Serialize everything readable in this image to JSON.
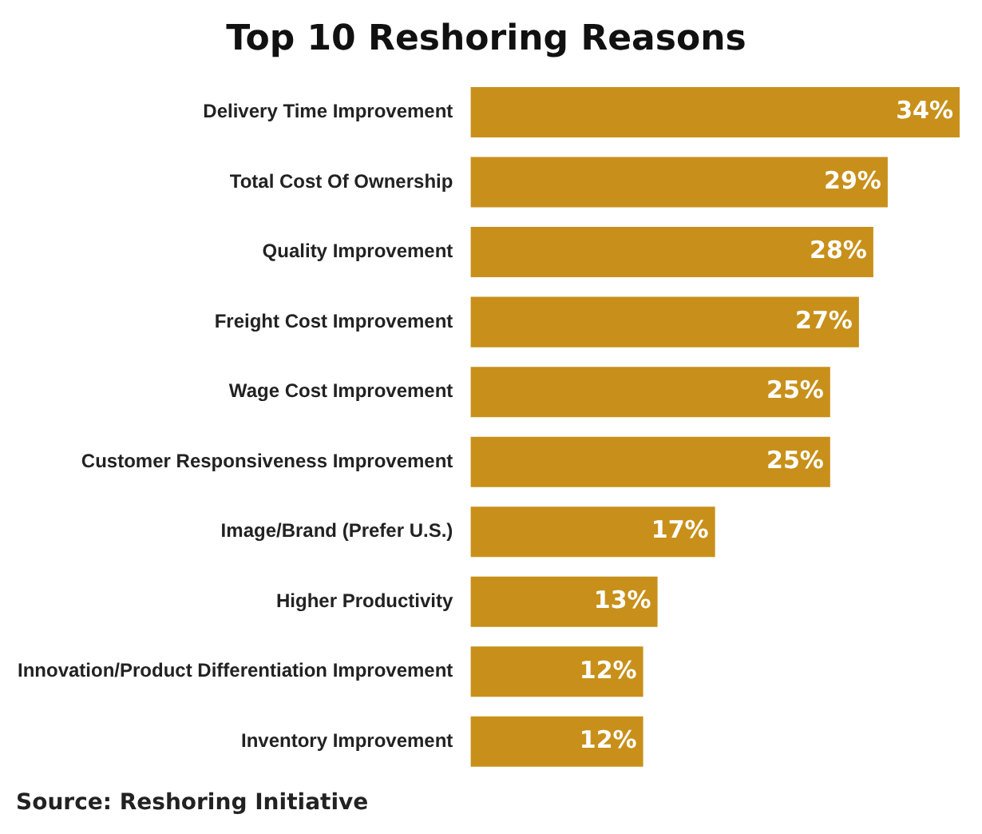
{
  "chart_data": {
    "type": "bar",
    "orientation": "horizontal",
    "title": "Top 10 Reshoring Reasons",
    "categories": [
      "Delivery Time Improvement",
      "Total Cost Of Ownership",
      "Quality Improvement",
      "Freight Cost Improvement",
      "Wage Cost Improvement",
      "Customer Responsiveness Improvement",
      "Image/Brand (Prefer U.S.)",
      "Higher Productivity",
      "Innovation/Product Differentiation Improvement",
      "Inventory Improvement"
    ],
    "values": [
      34,
      29,
      28,
      27,
      25,
      25,
      17,
      13,
      12,
      12
    ],
    "color": "#c8901a",
    "value_labels": [
      "34%",
      "29%",
      "28%",
      "27%",
      "25%",
      "25%",
      "17%",
      "13%",
      "12%",
      "12%"
    ],
    "annotations": [
      "Source: Reshoring Initiative"
    ]
  }
}
